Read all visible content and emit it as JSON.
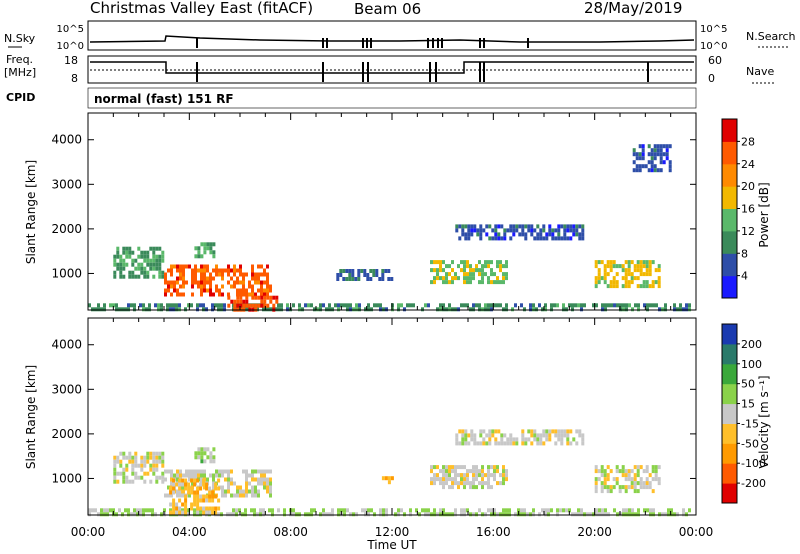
{
  "header": {
    "title": "Christmas Valley East (fitACF)",
    "beam": "Beam 06",
    "date": "28/May/2019"
  },
  "panels": {
    "nsky_label": "N.Sky",
    "nsky_ticks": [
      "10^5",
      "10^0"
    ],
    "nsearch_label": "N.Search",
    "nsearch_ticks": [
      "10^5",
      "10^0"
    ],
    "freq_label_1": "Freq.",
    "freq_label_2": "[MHz]",
    "freq_ticks": [
      "18",
      "8"
    ],
    "nave_label": "Nave",
    "nave_ticks": [
      "60",
      "0"
    ],
    "cpid_label": "CPID",
    "cpid_text": "normal (fast) 151 RF"
  },
  "colors": {
    "power_scale": [
      "#1a1aff",
      "#2e4ea8",
      "#3a8a5a",
      "#5ab86a",
      "#f2b800",
      "#ff8a00",
      "#ff5a00",
      "#e00000"
    ],
    "velocity_scale": [
      "#e00000",
      "#ff5a00",
      "#ff9a00",
      "#ffbf2a",
      "#c8c8c8",
      "#8ad24a",
      "#3aa83a",
      "#2a7a6a",
      "#1a3ab0"
    ]
  },
  "chart_data": [
    {
      "type": "heatmap",
      "title": "",
      "ylabel": "Slant Range [km]",
      "xlabel": "",
      "x_ticks": [],
      "y_ticks": [
        "1000",
        "2000",
        "3000",
        "4000"
      ],
      "y_values": [
        1000,
        2000,
        3000,
        4000
      ],
      "ylim": [
        180,
        4600
      ],
      "xlim": [
        0,
        24
      ],
      "colorbar": {
        "label": "Power [dB]",
        "ticks": [
          "4",
          "8",
          "12",
          "16",
          "20",
          "24",
          "28"
        ],
        "range": [
          0,
          32
        ]
      },
      "echo_regions": [
        {
          "t0": 0.0,
          "t1": 23.8,
          "r0": 180,
          "r1": 330,
          "value": 10
        },
        {
          "t0": 1.0,
          "t1": 3.0,
          "r0": 900,
          "r1": 1600,
          "value": 11
        },
        {
          "t0": 3.0,
          "t1": 7.2,
          "r0": 500,
          "r1": 1200,
          "value": 26
        },
        {
          "t0": 4.2,
          "t1": 5.0,
          "r0": 1400,
          "r1": 1700,
          "value": 13
        },
        {
          "t0": 5.5,
          "t1": 7.5,
          "r0": 200,
          "r1": 500,
          "value": 27
        },
        {
          "t0": 9.8,
          "t1": 12.0,
          "r0": 900,
          "r1": 1100,
          "value": 7
        },
        {
          "t0": 13.5,
          "t1": 16.5,
          "r0": 800,
          "r1": 1300,
          "value": 15
        },
        {
          "t0": 14.5,
          "t1": 19.5,
          "r0": 1800,
          "r1": 2100,
          "value": 6
        },
        {
          "t0": 20.0,
          "t1": 22.5,
          "r0": 700,
          "r1": 1300,
          "value": 17
        },
        {
          "t0": 21.5,
          "t1": 23.0,
          "r0": 3300,
          "r1": 3900,
          "value": 6
        }
      ]
    },
    {
      "type": "heatmap",
      "title": "",
      "ylabel": "Slant Range [km]",
      "xlabel": "Time UT",
      "x_ticks": [
        "00:00",
        "04:00",
        "08:00",
        "12:00",
        "16:00",
        "20:00",
        "00:00"
      ],
      "x_values": [
        0,
        4,
        8,
        12,
        16,
        20,
        24
      ],
      "y_ticks": [
        "1000",
        "2000",
        "3000",
        "4000"
      ],
      "y_values": [
        1000,
        2000,
        3000,
        4000
      ],
      "ylim": [
        180,
        4600
      ],
      "xlim": [
        0,
        24
      ],
      "colorbar": {
        "label": "Velocity [m s⁻¹]",
        "ticks": [
          "-200",
          "-100",
          "-50",
          "-15",
          "15",
          "50",
          "100",
          "200"
        ],
        "range": [
          -250,
          250
        ]
      },
      "echo_regions": [
        {
          "t0": 0.0,
          "t1": 23.8,
          "r0": 180,
          "r1": 330,
          "value": 30
        },
        {
          "t0": 1.0,
          "t1": 3.0,
          "r0": 900,
          "r1": 1600,
          "value": 0
        },
        {
          "t0": 3.0,
          "t1": 7.2,
          "r0": 600,
          "r1": 1200,
          "value": 0
        },
        {
          "t0": 3.2,
          "t1": 5.2,
          "r0": 250,
          "r1": 1000,
          "value": -60
        },
        {
          "t0": 4.2,
          "t1": 5.0,
          "r0": 1400,
          "r1": 1700,
          "value": 40
        },
        {
          "t0": 11.6,
          "t1": 12.0,
          "r0": 950,
          "r1": 1050,
          "value": -60
        },
        {
          "t0": 13.5,
          "t1": 16.5,
          "r0": 800,
          "r1": 1300,
          "value": 0
        },
        {
          "t0": 14.5,
          "t1": 19.5,
          "r0": 1800,
          "r1": 2100,
          "value": 0
        },
        {
          "t0": 20.0,
          "t1": 22.5,
          "r0": 700,
          "r1": 1300,
          "value": 0
        }
      ]
    }
  ]
}
